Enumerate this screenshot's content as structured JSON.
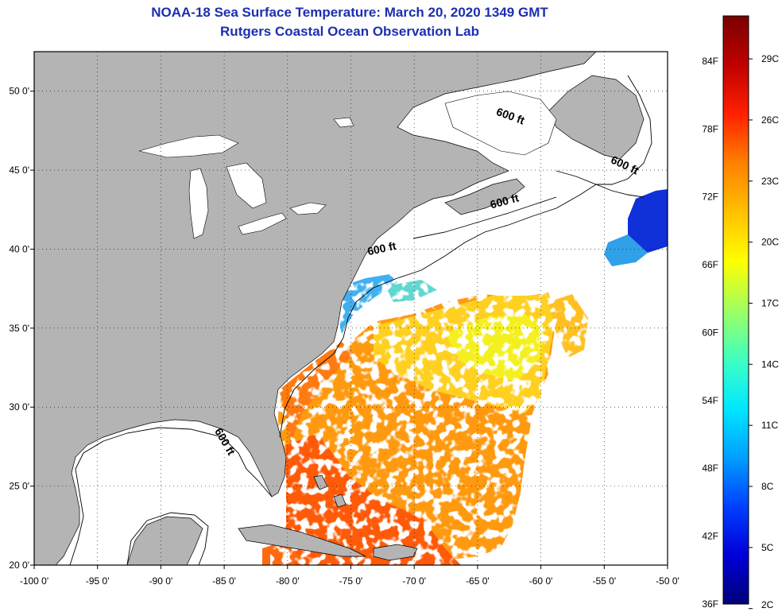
{
  "title": {
    "line1": "NOAA-18 Sea Surface Temperature:  March 20, 2020 1349 GMT",
    "line2": "Rutgers Coastal Ocean Observation Lab"
  },
  "map": {
    "lon_min": -100,
    "lon_max": -50,
    "lat_min": 20,
    "lat_max": 52.5,
    "lon_ticks": [
      {
        "value": -100,
        "label": "-100 0'"
      },
      {
        "value": -95,
        "label": "-95 0'"
      },
      {
        "value": -90,
        "label": "-90 0'"
      },
      {
        "value": -85,
        "label": "-85 0'"
      },
      {
        "value": -80,
        "label": "-80 0'"
      },
      {
        "value": -75,
        "label": "-75 0'"
      },
      {
        "value": -70,
        "label": "-70 0'"
      },
      {
        "value": -65,
        "label": "-65 0'"
      },
      {
        "value": -60,
        "label": "-60 0'"
      },
      {
        "value": -55,
        "label": "-55 0'"
      },
      {
        "value": -50,
        "label": "-50 0'"
      }
    ],
    "lat_ticks": [
      {
        "value": 50,
        "label": "50 0'"
      },
      {
        "value": 45,
        "label": "45 0'"
      },
      {
        "value": 40,
        "label": "40 0'"
      },
      {
        "value": 35,
        "label": "35 0'"
      },
      {
        "value": 30,
        "label": "30 0'"
      },
      {
        "value": 25,
        "label": "25 0'"
      },
      {
        "value": 20,
        "label": "20 0'"
      }
    ],
    "land_color": "#b4b4b4",
    "water_color": "#ffffff",
    "grid": true,
    "contour_labels": [
      {
        "text": "600 ft",
        "lon": -62.5,
        "lat": 48.2,
        "angle": 20
      },
      {
        "text": "600 ft",
        "lon": -53.5,
        "lat": 45.1,
        "angle": 25
      },
      {
        "text": "600 ft",
        "lon": -62.8,
        "lat": 42.8,
        "angle": -15
      },
      {
        "text": "600 ft",
        "lon": -72.5,
        "lat": 39.8,
        "angle": -12
      },
      {
        "text": "600 ft",
        "lon": -85.2,
        "lat": 27.7,
        "angle": 60
      }
    ]
  },
  "colorbar": {
    "colors": [
      "#00007a",
      "#0000d8",
      "#0040ff",
      "#00a0ff",
      "#00e8ff",
      "#40ffc0",
      "#a0ff60",
      "#ffff00",
      "#ffc000",
      "#ff8000",
      "#ff2000",
      "#c00000",
      "#7a0000"
    ],
    "f_labels": [
      {
        "label": "84F",
        "f": 84
      },
      {
        "label": "78F",
        "f": 78
      },
      {
        "label": "72F",
        "f": 72
      },
      {
        "label": "66F",
        "f": 66
      },
      {
        "label": "60F",
        "f": 60
      },
      {
        "label": "54F",
        "f": 54
      },
      {
        "label": "48F",
        "f": 48
      },
      {
        "label": "42F",
        "f": 42
      },
      {
        "label": "36F",
        "f": 36
      }
    ],
    "c_labels": [
      {
        "label": "29C",
        "c": 29
      },
      {
        "label": "26C",
        "c": 26
      },
      {
        "label": "23C",
        "c": 23
      },
      {
        "label": "20C",
        "c": 20
      },
      {
        "label": "17C",
        "c": 17
      },
      {
        "label": "14C",
        "c": 14
      },
      {
        "label": "11C",
        "c": 11
      },
      {
        "label": "8C",
        "c": 8
      },
      {
        "label": "5C",
        "c": 5
      },
      {
        "label": "2C",
        "c": 2
      }
    ]
  }
}
